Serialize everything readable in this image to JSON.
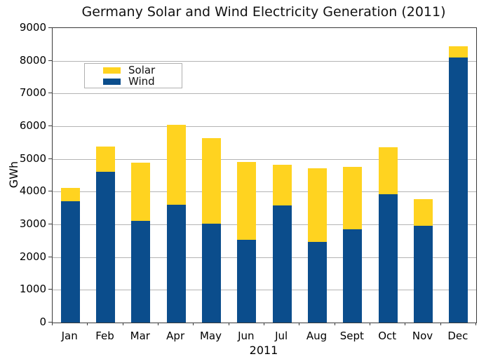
{
  "chart_data": {
    "type": "bar",
    "stacked": true,
    "title": "Germany Solar and Wind Electricity Generation (2011)",
    "xlabel": "2011",
    "ylabel": "GWh",
    "categories": [
      "Jan",
      "Feb",
      "Mar",
      "Apr",
      "May",
      "Jun",
      "Jul",
      "Aug",
      "Sept",
      "Oct",
      "Nov",
      "Dec"
    ],
    "series": [
      {
        "name": "Solar",
        "color": "#FFD320",
        "values": [
          400,
          780,
          1770,
          2460,
          2620,
          2370,
          1250,
          2250,
          1890,
          1430,
          810,
          350
        ]
      },
      {
        "name": "Wind",
        "color": "#0B4D8C",
        "values": [
          3710,
          4600,
          3110,
          3590,
          3020,
          2530,
          3570,
          2470,
          2860,
          3930,
          2960,
          8100
        ]
      }
    ],
    "ylim": [
      0,
      9000
    ],
    "yticks": [
      0,
      1000,
      2000,
      3000,
      4000,
      5000,
      6000,
      7000,
      8000,
      9000
    ],
    "grid": true,
    "legend": {
      "position": "upper-left-inside",
      "entries": [
        "Solar",
        "Wind"
      ]
    },
    "colors": {
      "grid": "#B4B4B4",
      "frame": "#3A3A3A",
      "text": "#000000",
      "background": "#FFFFFF"
    }
  }
}
